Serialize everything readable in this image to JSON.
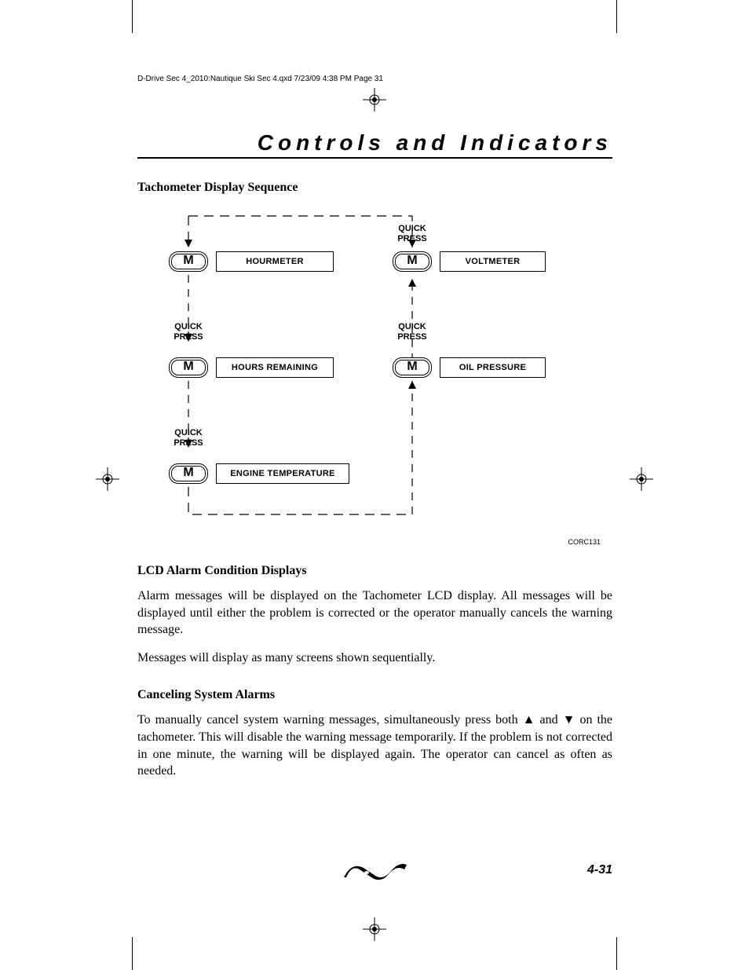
{
  "slug": "D-Drive Sec 4_2010:Nautique Ski Sec 4.qxd  7/23/09  4:38 PM  Page 31",
  "section_title": "Controls and Indicators",
  "sub1": "Tachometer Display Sequence",
  "diagram": {
    "button_label": "M",
    "quick_press": "QUICK\nPRESS",
    "nodes": {
      "hourmeter": "HOURMETER",
      "hours_remaining": "HOURS REMAINING",
      "engine_temp": "ENGINE TEMPERATURE",
      "voltmeter": "VOLTMETER",
      "oil_pressure": "OIL PRESSURE"
    },
    "fig_code": "CORC131"
  },
  "sub2": "LCD Alarm Condition Displays",
  "para1": "Alarm messages will be displayed on the Tachometer LCD display. All messages will be displayed until either the problem is corrected or the operator manually cancels the warning message.",
  "para2": "Messages will display as many screens shown sequentially.",
  "sub3": "Canceling System Alarms",
  "para3a": "To manually cancel system warning messages, simultaneously press both ",
  "para3b": " and ",
  "para3c": " on the tachometer. This will disable the warning message temporarily. If the problem is not corrected in one minute, the warning will be displayed again. The operator can cancel as often as needed.",
  "page_number": "4-31",
  "colors": {
    "text": "#000000",
    "bg": "#ffffff"
  }
}
